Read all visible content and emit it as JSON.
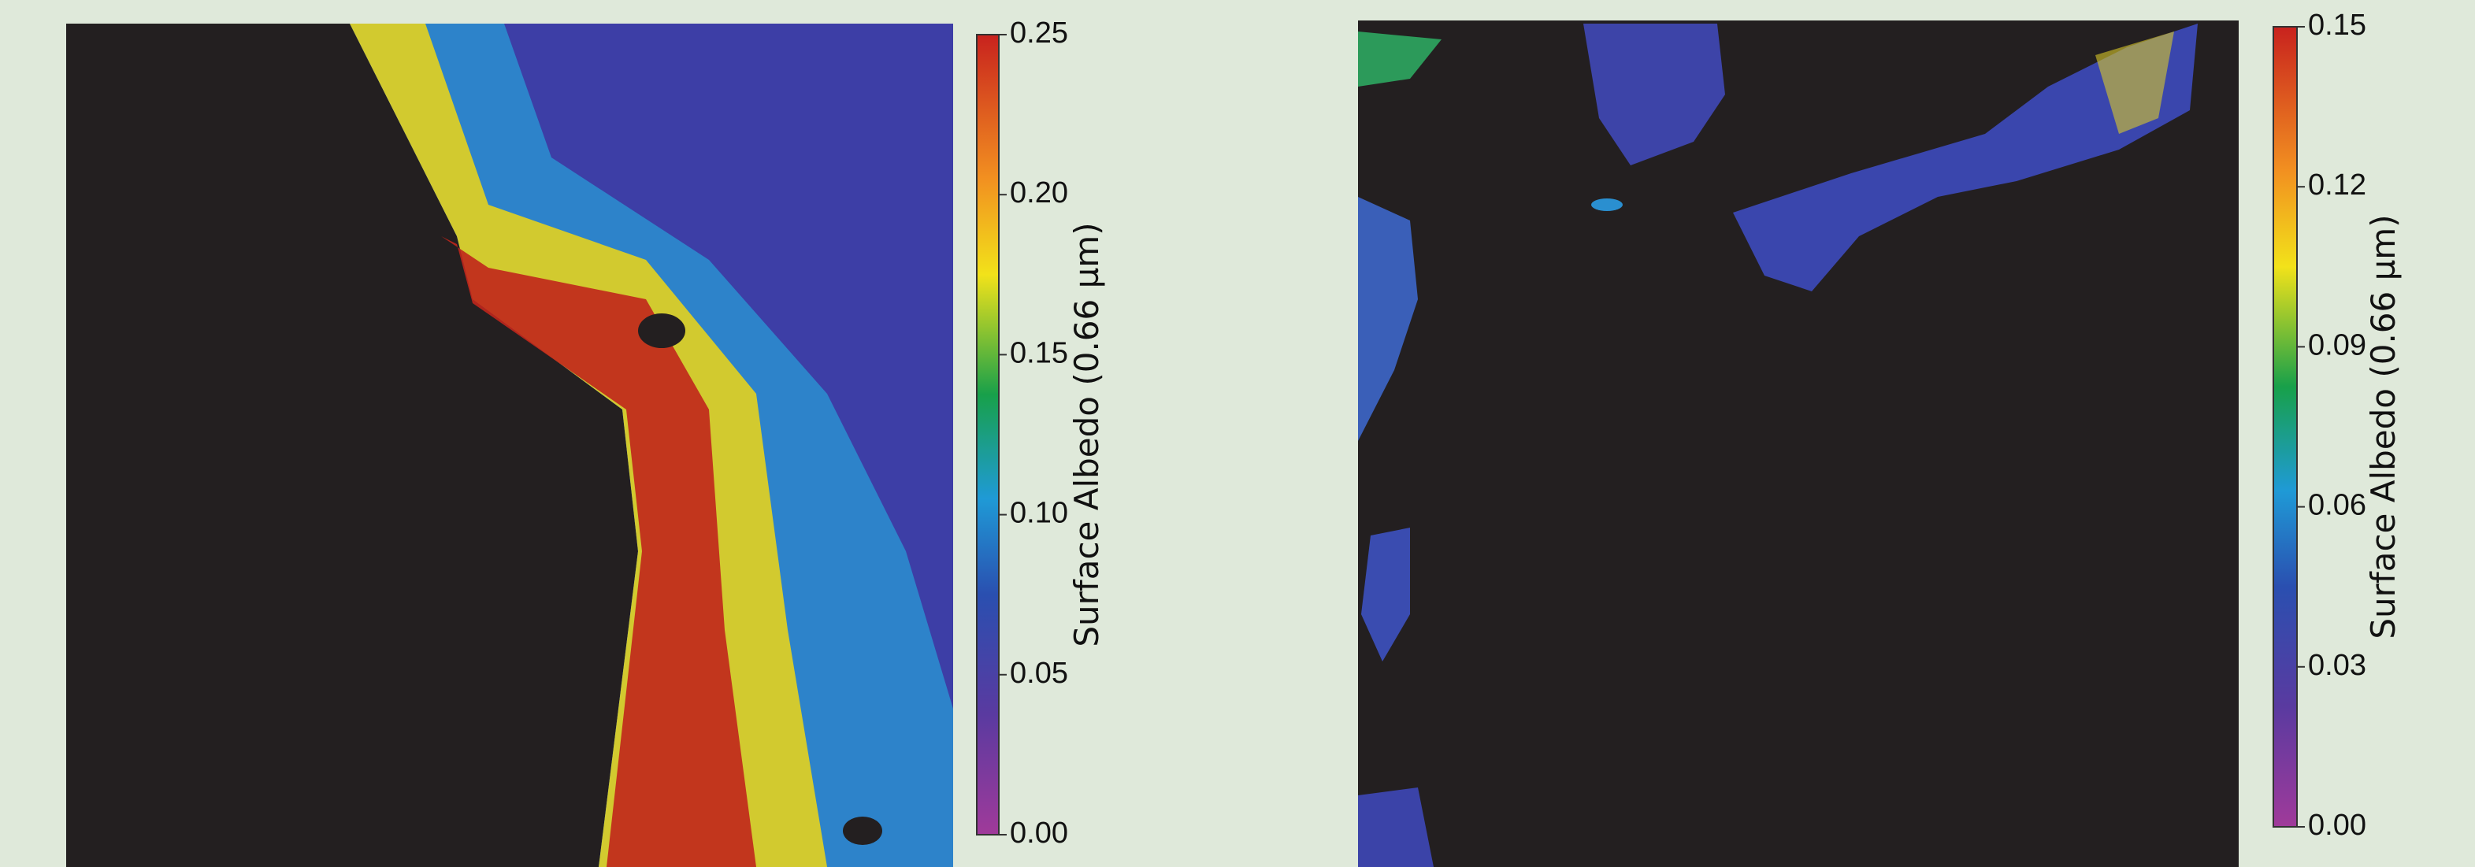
{
  "maps": [
    {
      "colorbar": {
        "label": "Surface Albedo (0.66 µm)",
        "lim": [
          0,
          0.25
        ],
        "ticks": [
          {
            "value": 0,
            "label": "0.00"
          },
          0.05,
          {
            "value": 0.1,
            "label": "0.10"
          },
          0.15,
          {
            "value": 0.2,
            "label": "0.20"
          },
          0.25
        ]
      }
    },
    {
      "colorbar": {
        "label": "Surface Albedo (0.66 µm)",
        "lim": [
          0,
          0.15
        ],
        "ticks": [
          {
            "value": 0,
            "label": "0.00"
          },
          0.03,
          0.06,
          0.09,
          0.12,
          0.15
        ]
      }
    }
  ]
}
